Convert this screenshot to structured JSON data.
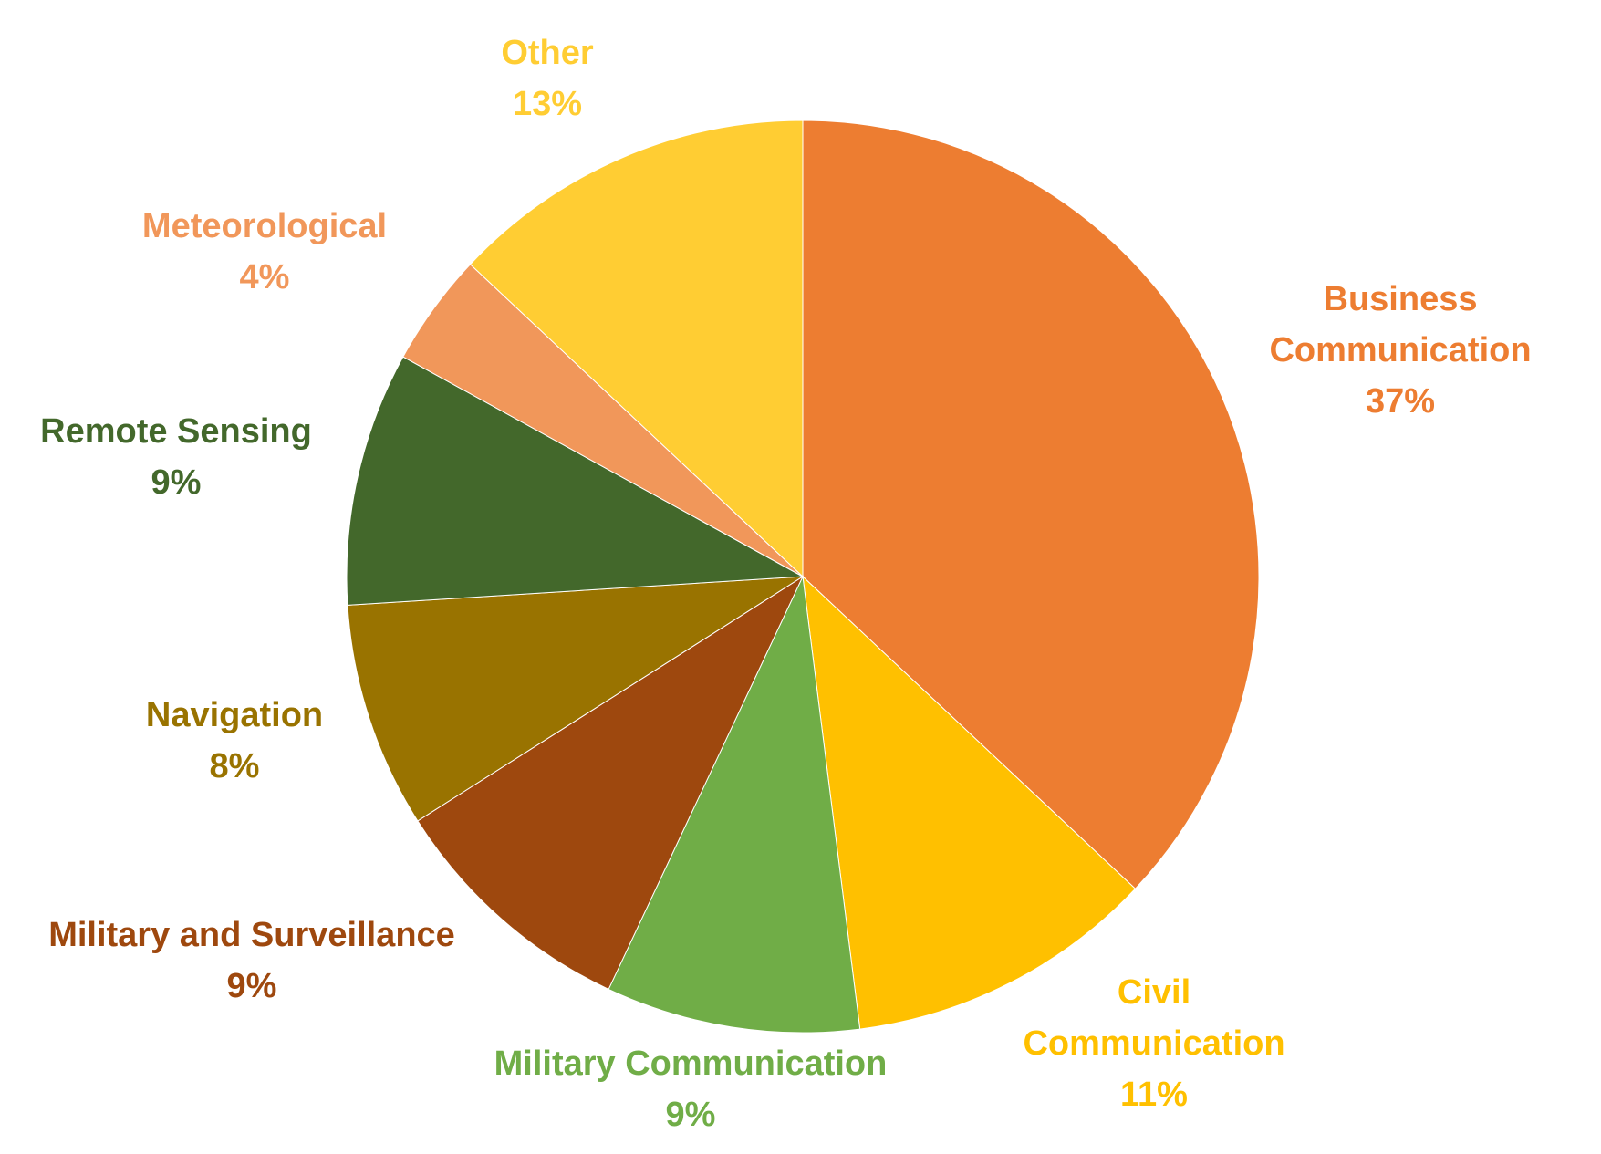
{
  "chart_data": {
    "type": "pie",
    "title": "",
    "slices": [
      {
        "label_lines": [
          "Business",
          "Communication"
        ],
        "value": 37,
        "display": "37%",
        "color": "#ED7D31",
        "label_color": "#ED7D31"
      },
      {
        "label_lines": [
          "Civil",
          "Communication"
        ],
        "value": 11,
        "display": "11%",
        "color": "#FFC000",
        "label_color": "#FFC000"
      },
      {
        "label_lines": [
          "Military Communication"
        ],
        "value": 9,
        "display": "9%",
        "color": "#70AD47",
        "label_color": "#70AD47"
      },
      {
        "label_lines": [
          "Military and Surveillance"
        ],
        "value": 9,
        "display": "9%",
        "color": "#9E480E",
        "label_color": "#9E480E"
      },
      {
        "label_lines": [
          "Navigation"
        ],
        "value": 8,
        "display": "8%",
        "color": "#997300",
        "label_color": "#997300"
      },
      {
        "label_lines": [
          "Remote Sensing"
        ],
        "value": 9,
        "display": "9%",
        "color": "#43682B",
        "label_color": "#43682B"
      },
      {
        "label_lines": [
          "Meteorological"
        ],
        "value": 4,
        "display": "4%",
        "color": "#F1975A",
        "label_color": "#F1975A"
      },
      {
        "label_lines": [
          "Other"
        ],
        "value": 13,
        "display": "13%",
        "color": "#FFCD33",
        "label_color": "#FFCD33"
      }
    ],
    "start_angle_deg": 0,
    "direction": "clockwise",
    "legend": "none",
    "data_labels": "outside"
  }
}
